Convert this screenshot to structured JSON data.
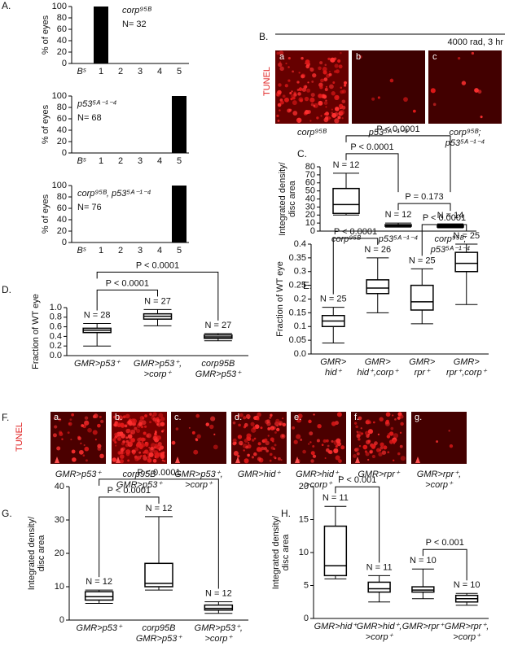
{
  "figure": {
    "panel_labels": [
      "A.",
      "B.",
      "C.",
      "D.",
      "E.",
      "F.",
      "G.",
      "H."
    ],
    "B": {
      "header": "4000 rad, 3 hr",
      "stain": "TUNEL",
      "tiles": [
        {
          "letter": "a",
          "caption": [
            "corp⁹⁵ᴮ"
          ]
        },
        {
          "letter": "b",
          "caption": [
            "p53⁵ᴬ⁻¹⁻⁴"
          ]
        },
        {
          "letter": "c",
          "caption": [
            "corp⁹⁵ᴮ;",
            "p53⁵ᴬ⁻¹⁻⁴"
          ]
        }
      ]
    },
    "F": {
      "stain": "TUNEL",
      "tiles": [
        {
          "letter": "a.",
          "caption": [
            "GMR>p53⁺"
          ]
        },
        {
          "letter": "b.",
          "caption": [
            "corp95B",
            "GMR>p53⁺"
          ]
        },
        {
          "letter": "c.",
          "caption": [
            "GMR>p53⁺,",
            ">corp⁺"
          ]
        },
        {
          "letter": "d.",
          "caption": [
            "GMR>hid⁺"
          ]
        },
        {
          "letter": "e.",
          "caption": [
            "GMR>hid⁺,",
            ">corp⁺"
          ]
        },
        {
          "letter": "f.",
          "caption": [
            "GMR>rpr⁺"
          ]
        },
        {
          "letter": "g.",
          "caption": [
            "GMR>rpr⁺,",
            ">corp⁺"
          ]
        }
      ]
    }
  },
  "chart_data": [
    {
      "type": "bar",
      "ylabel": "% of eyes",
      "categories": [
        "Bˢ",
        "1",
        "2",
        "3",
        "4",
        "5"
      ],
      "values": [
        0,
        100,
        0,
        0,
        0,
        0
      ],
      "color": "#000000",
      "ylim": [
        0,
        100
      ],
      "yticks": [
        0,
        20,
        40,
        60,
        80,
        100
      ],
      "annotations": [
        "corp⁹⁵ᴮ",
        "N= 32"
      ]
    },
    {
      "type": "bar",
      "ylabel": "% of eyes",
      "categories": [
        "Bˢ",
        "1",
        "2",
        "3",
        "4",
        "5"
      ],
      "values": [
        0,
        0,
        0,
        0,
        0,
        100
      ],
      "color": "#000000",
      "ylim": [
        0,
        100
      ],
      "yticks": [
        0,
        20,
        40,
        60,
        80,
        100
      ],
      "annotations": [
        "p53⁵ᴬ⁻¹⁻⁴",
        "N= 68"
      ]
    },
    {
      "type": "bar",
      "ylabel": "% of eyes",
      "categories": [
        "Bˢ",
        "1",
        "2",
        "3",
        "4",
        "5"
      ],
      "values": [
        0,
        0,
        0,
        0,
        0,
        100
      ],
      "color": "#000000",
      "ylim": [
        0,
        100
      ],
      "yticks": [
        0,
        20,
        40,
        60,
        80,
        100
      ],
      "annotations": [
        "corp⁹⁵ᴮ, p53⁵ᴬ⁻¹⁻⁴",
        "N= 76"
      ]
    },
    {
      "type": "box",
      "ylabel": [
        "Integrated density/",
        "disc area"
      ],
      "categories": [
        [
          "corp⁹⁵ᴮ"
        ],
        [
          "p53⁵ᴬ⁻¹⁻⁴"
        ],
        [
          "corp⁹⁵ᴮ;",
          "p53⁵ᴬ⁻¹⁻⁴"
        ]
      ],
      "boxes": [
        {
          "min": 20,
          "q1": 22,
          "median": 33,
          "q3": 53,
          "max": 72
        },
        {
          "min": 5,
          "q1": 6,
          "median": 7,
          "q3": 8,
          "max": 10
        },
        {
          "min": 4,
          "q1": 5,
          "median": 6,
          "q3": 7,
          "max": 9
        }
      ],
      "n_labels": [
        "N = 12",
        "N = 12",
        "N = 14"
      ],
      "ylim": [
        0,
        80
      ],
      "yticks": [
        0,
        10,
        20,
        30,
        40,
        50,
        60,
        70,
        80
      ],
      "comparisons": [
        {
          "between": [
            1,
            2
          ],
          "label": "P = 0.173"
        },
        {
          "between": [
            0,
            1
          ],
          "label": "P < 0.0001"
        },
        {
          "between": [
            0,
            2
          ],
          "label": "P < 0.0001"
        }
      ]
    },
    {
      "type": "box",
      "ylabel": [
        "Fraction of WT eye"
      ],
      "categories": [
        [
          "GMR>p53⁺"
        ],
        [
          "GMR>p53⁺,",
          ">corp⁺"
        ],
        [
          "corp95B",
          "GMR>p53⁺"
        ]
      ],
      "boxes": [
        {
          "min": 0.2,
          "q1": 0.48,
          "median": 0.53,
          "q3": 0.57,
          "max": 0.67
        },
        {
          "min": 0.62,
          "q1": 0.76,
          "median": 0.82,
          "q3": 0.87,
          "max": 0.96
        },
        {
          "min": 0.31,
          "q1": 0.36,
          "median": 0.39,
          "q3": 0.43,
          "max": 0.46
        }
      ],
      "n_labels": [
        "N = 28",
        "N = 27",
        "N = 27"
      ],
      "ylim": [
        0,
        1
      ],
      "yticks": [
        {
          "value": 0,
          "label": "0.0"
        },
        0.2,
        0.4,
        0.6,
        0.8,
        {
          "value": 1,
          "label": "1.0"
        }
      ],
      "comparisons": [
        {
          "between": [
            0,
            1
          ],
          "label": "P < 0.0001"
        },
        {
          "between": [
            0,
            2
          ],
          "label": "P < 0.0001"
        }
      ]
    },
    {
      "type": "box",
      "ylabel": [
        "Fraction of WT eye"
      ],
      "categories": [
        [
          "GMR>",
          "hid⁺"
        ],
        [
          "GMR>",
          "hid⁺,corp⁺"
        ],
        [
          "GMR>",
          "rpr⁺"
        ],
        [
          "GMR>",
          "rpr⁺,corp⁺"
        ]
      ],
      "boxes": [
        {
          "min": 0.04,
          "q1": 0.1,
          "median": 0.12,
          "q3": 0.14,
          "max": 0.17
        },
        {
          "min": 0.15,
          "q1": 0.22,
          "median": 0.24,
          "q3": 0.27,
          "max": 0.35
        },
        {
          "min": 0.11,
          "q1": 0.16,
          "median": 0.19,
          "q3": 0.25,
          "max": 0.31
        },
        {
          "min": 0.18,
          "q1": 0.3,
          "median": 0.33,
          "q3": 0.37,
          "max": 0.4
        }
      ],
      "n_labels": [
        "N = 25",
        "N = 26",
        "N = 25",
        "N = 25"
      ],
      "ylim": [
        0,
        0.4
      ],
      "yticks": [
        {
          "value": 0,
          "label": "0.0"
        },
        0.05,
        0.1,
        0.15,
        0.2,
        0.25,
        0.3,
        0.35,
        0.4
      ],
      "comparisons": [
        {
          "between": [
            0,
            1
          ],
          "label": "P < 0.0001"
        },
        {
          "between": [
            2,
            3
          ],
          "label": "P < 0.0001"
        }
      ]
    },
    {
      "type": "box",
      "ylabel": [
        "Integrated density/",
        "disc area"
      ],
      "categories": [
        [
          "GMR>p53⁺"
        ],
        [
          "corp95B",
          "GMR>p53⁺"
        ],
        [
          "GMR>p53⁺,",
          ">corp⁺"
        ]
      ],
      "boxes": [
        {
          "min": 5,
          "q1": 6,
          "median": 7,
          "q3": 8.5,
          "max": 9
        },
        {
          "min": 9,
          "q1": 10,
          "median": 11,
          "q3": 17,
          "max": 31
        },
        {
          "min": 2,
          "q1": 3,
          "median": 3.5,
          "q3": 4.5,
          "max": 5.5
        }
      ],
      "n_labels": [
        "N = 12",
        "N = 12",
        "N = 12"
      ],
      "ylim": [
        0,
        40
      ],
      "yticks": [
        0,
        10,
        20,
        30,
        40
      ],
      "comparisons": [
        {
          "between": [
            0,
            1
          ],
          "label": "P < 0.0001"
        },
        {
          "between": [
            0,
            2
          ],
          "label": "P < 0.0001"
        }
      ]
    },
    {
      "type": "box",
      "ylabel": [
        "Integrated density/",
        "disc area"
      ],
      "categories": [
        [
          "GMR>hid⁺"
        ],
        [
          "GMR>hid⁺,",
          ">corp⁺"
        ],
        [
          "GMR>rpr⁺"
        ],
        [
          "GMR>rpr⁺,",
          ">corp⁺"
        ]
      ],
      "boxes": [
        {
          "min": 6,
          "q1": 6.5,
          "median": 8,
          "q3": 14,
          "max": 17
        },
        {
          "min": 2.5,
          "q1": 4,
          "median": 4.5,
          "q3": 5.5,
          "max": 6.5
        },
        {
          "min": 3,
          "q1": 4,
          "median": 4.3,
          "q3": 4.8,
          "max": 7.5
        },
        {
          "min": 2,
          "q1": 2.5,
          "median": 3,
          "q3": 3.5,
          "max": 3.8
        }
      ],
      "n_labels": [
        "N = 11",
        "N = 11",
        "N = 10",
        "N = 10"
      ],
      "ylim": [
        0,
        20
      ],
      "yticks": [
        0,
        5,
        10,
        15,
        20
      ],
      "comparisons": [
        {
          "between": [
            0,
            1
          ],
          "label": "P < 0.001"
        },
        {
          "between": [
            2,
            3
          ],
          "label": "P < 0.001"
        }
      ]
    }
  ]
}
